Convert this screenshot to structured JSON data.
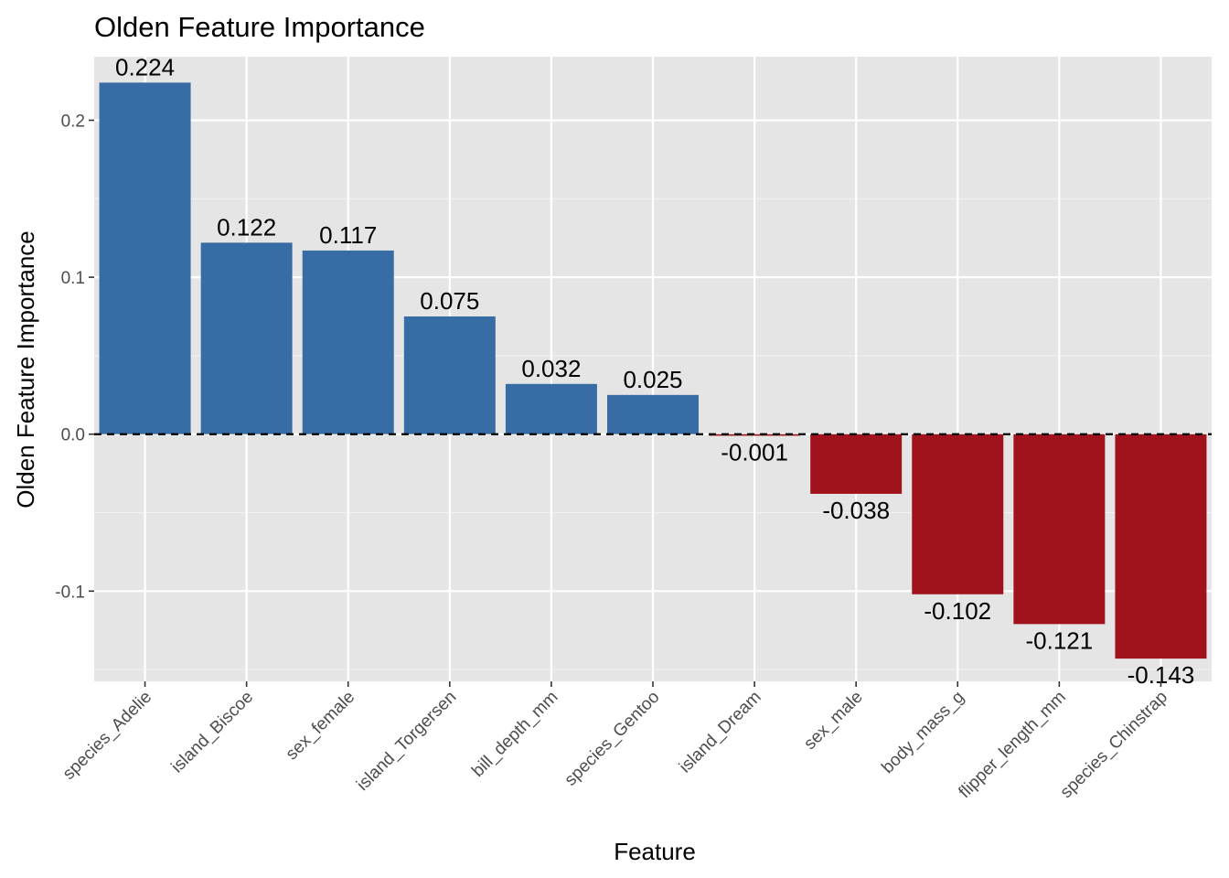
{
  "chart_data": {
    "type": "bar",
    "title": "Olden Feature Importance",
    "xlabel": "Feature",
    "ylabel": "Olden Feature Importance",
    "categories": [
      "species_Adelie",
      "island_Biscoe",
      "sex_female",
      "island_Torgersen",
      "bill_depth_mm",
      "species_Gentoo",
      "island_Dream",
      "sex_male",
      "body_mass_g",
      "flipper_length_mm",
      "species_Chinstrap"
    ],
    "values": [
      0.224,
      0.122,
      0.117,
      0.075,
      0.032,
      0.025,
      -0.001,
      -0.038,
      -0.102,
      -0.121,
      -0.143
    ],
    "value_labels": [
      "0.224",
      "0.122",
      "0.117",
      "0.075",
      "0.032",
      "0.025",
      "-0.001",
      "-0.038",
      "-0.102",
      "-0.121",
      "-0.143"
    ],
    "ylim": [
      -0.1575,
      0.2405
    ],
    "y_ticks": [
      -0.1,
      0.0,
      0.1,
      0.2
    ],
    "y_tick_labels": [
      "-0.1",
      "0.0",
      "0.1",
      "0.2"
    ],
    "reference_line": {
      "y": 0,
      "style": "dashed"
    },
    "grid": true,
    "legend": "none",
    "colors": {
      "positive": "#386CA4",
      "negative": "#A0121C",
      "panel_background": "#E5E5E5",
      "grid_major": "#FFFFFF",
      "grid_minor": "#F2F2F2",
      "reference_line": "#000000"
    }
  }
}
